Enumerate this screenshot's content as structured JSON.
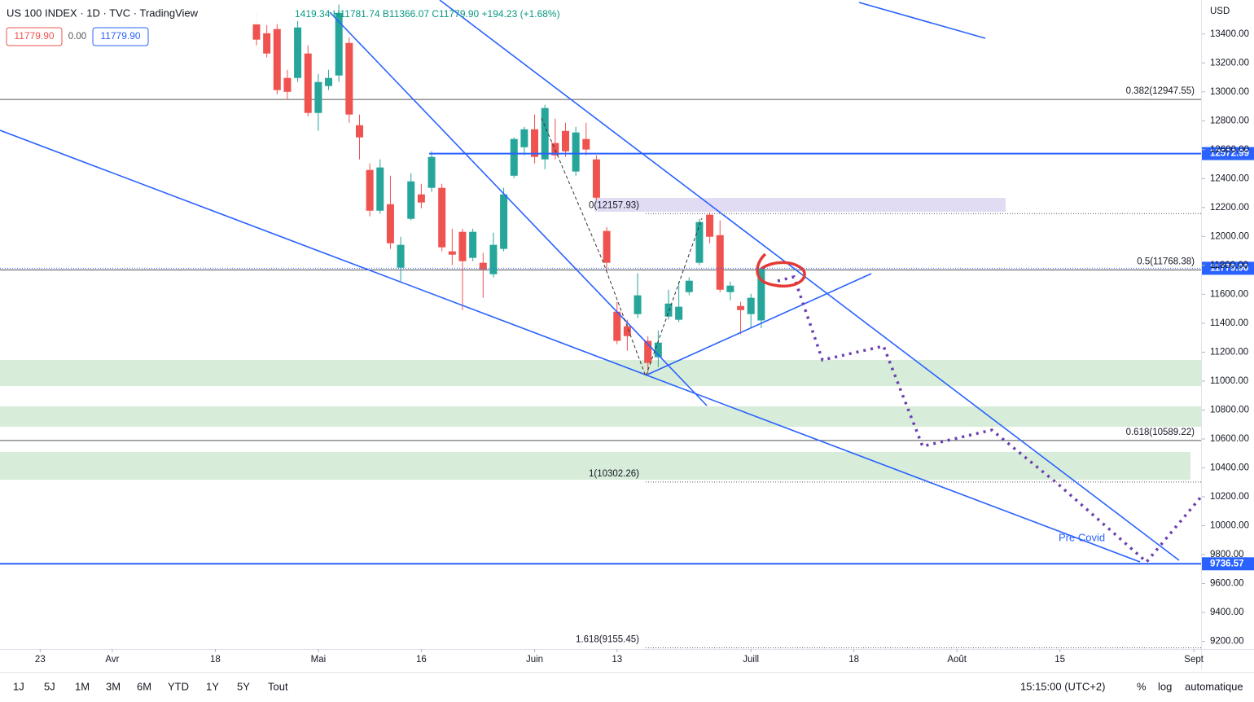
{
  "header": {
    "symbol": "US 100 INDEX · 1D · TVC · TradingView",
    "ohlc": "1419.34 H11781.74 B11366.07 C11779.90 +194.23 (+1.68%)",
    "bid": "11779.90",
    "spread": "0.00",
    "ask": "11779.90",
    "currency": "USD"
  },
  "toolbar": {
    "ranges": [
      "1J",
      "5J",
      "1M",
      "3M",
      "6M",
      "YTD",
      "1Y",
      "5Y",
      "Tout"
    ],
    "time": "15:15:00 (UTC+2)",
    "percent": "%",
    "log": "log",
    "auto": "automatique"
  },
  "chart_data": {
    "type": "candlestick",
    "x": [
      21,
      22,
      23,
      24,
      25,
      26,
      27,
      28,
      29,
      30,
      31,
      32,
      33,
      34,
      35,
      36,
      37,
      38,
      39,
      40,
      41,
      42,
      43,
      44,
      45,
      46,
      47,
      48,
      49,
      50,
      51,
      52,
      53,
      54,
      55,
      56,
      57,
      58,
      59,
      60,
      61,
      62,
      63,
      64,
      65,
      66,
      67,
      68,
      69,
      70
    ],
    "open": [
      13473,
      13405,
      13434,
      13096,
      13096,
      13265,
      12854,
      13040,
      13113,
      13338,
      12769,
      12460,
      12178,
      12223,
      11784,
      12122,
      12291,
      12336,
      12336,
      11897,
      12032,
      11852,
      11818,
      11739,
      11914,
      12420,
      12617,
      12741,
      12533,
      12646,
      12730,
      12449,
      12674,
      12533,
      12038,
      11480,
      11379,
      11463,
      11278,
      11165,
      11446,
      11424,
      11615,
      11818,
      12150,
      12009,
      11615,
      11519,
      11463,
      11419.34
    ],
    "high": [
      13546,
      13462,
      13490,
      13152,
      13490,
      13321,
      13124,
      13152,
      13603,
      13377,
      12843,
      12505,
      12533,
      12420,
      11998,
      12437,
      12364,
      12589,
      12364,
      12054,
      12054,
      12054,
      11886,
      12026,
      12336,
      12685,
      12758,
      12843,
      12910,
      12815,
      12786,
      12758,
      12786,
      12561,
      12066,
      11548,
      11424,
      11745,
      11311,
      11351,
      11632,
      11688,
      11717,
      12122,
      12167,
      12111,
      11688,
      11548,
      11604,
      11781.74
    ],
    "low": [
      13321,
      13237,
      12983,
      12944,
      13068,
      12831,
      12730,
      13012,
      13068,
      12786,
      12533,
      12139,
      12156,
      11914,
      11688,
      12111,
      12195,
      12308,
      11897,
      11801,
      11491,
      11829,
      11576,
      11717,
      11897,
      12403,
      12561,
      12505,
      12465,
      12533,
      12550,
      12420,
      12561,
      12251,
      11773,
      11255,
      11210,
      11435,
      11052,
      11097,
      11424,
      11407,
      11593,
      11801,
      11953,
      11615,
      11559,
      11323,
      11368,
      11366.07
    ],
    "close": [
      13361,
      13265,
      13012,
      13000,
      13445,
      12854,
      13068,
      13096,
      13546,
      12843,
      12685,
      12178,
      12477,
      11953,
      11942,
      12381,
      12235,
      12550,
      11925,
      11874,
      11829,
      12032,
      11773,
      11942,
      12291,
      12674,
      12741,
      12550,
      12888,
      12561,
      12589,
      12719,
      12601,
      12268,
      11818,
      11278,
      11311,
      11593,
      11125,
      11266,
      11536,
      11514,
      11694,
      12100,
      11998,
      11632,
      11660,
      11491,
      11576,
      11779.9
    ],
    "up_color": "#26a69a",
    "down_color": "#ef5350",
    "xlim": [
      -3.9,
      112.7
    ],
    "xticks": [
      {
        "value": 0,
        "label": "23"
      },
      {
        "value": 7,
        "label": "Avr"
      },
      {
        "value": 17,
        "label": "18"
      },
      {
        "value": 27,
        "label": "Mai"
      },
      {
        "value": 37,
        "label": "16"
      },
      {
        "value": 48,
        "label": "Juin"
      },
      {
        "value": 56,
        "label": "13"
      },
      {
        "value": 69,
        "label": "Juill"
      },
      {
        "value": 79,
        "label": "18"
      },
      {
        "value": 89,
        "label": "Août"
      },
      {
        "value": 99,
        "label": "15"
      },
      {
        "value": 112,
        "label": "Sept"
      }
    ],
    "ylim": [
      9147,
      13635
    ],
    "yticks": [
      {
        "value": 9200,
        "label": "9200.00"
      },
      {
        "value": 9400,
        "label": "9400.00"
      },
      {
        "value": 9600,
        "label": "9600.00"
      },
      {
        "value": 9800,
        "label": "9800.00"
      },
      {
        "value": 10000,
        "label": "10000.00"
      },
      {
        "value": 10200,
        "label": "10200.00"
      },
      {
        "value": 10400,
        "label": "10400.00"
      },
      {
        "value": 10600,
        "label": "10600.00"
      },
      {
        "value": 10800,
        "label": "10800.00"
      },
      {
        "value": 11000,
        "label": "11000.00"
      },
      {
        "value": 11200,
        "label": "11200.00"
      },
      {
        "value": 11400,
        "label": "11400.00"
      },
      {
        "value": 11600,
        "label": "11600.00"
      },
      {
        "value": 11800,
        "label": "11800.00"
      },
      {
        "value": 12000,
        "label": "12000.00"
      },
      {
        "value": 12200,
        "label": "12200.00"
      },
      {
        "value": 12400,
        "label": "12400.00"
      },
      {
        "value": 12600,
        "label": "12600.00"
      },
      {
        "value": 12800,
        "label": "12800.00"
      },
      {
        "value": 13000,
        "label": "13000.00"
      },
      {
        "value": 13200,
        "label": "13200.00"
      },
      {
        "value": 13400,
        "label": "13400.00"
      }
    ],
    "fib_levels": [
      {
        "value": 12947.55,
        "label": "0.382(12947.55)"
      },
      {
        "value": 11768.38,
        "label": "0.5(11768.38)"
      },
      {
        "value": 10589.22,
        "label": "0.618(10589.22)"
      }
    ],
    "fib_extensions": [
      {
        "value": 12157.93,
        "label": "0(12157.93)"
      },
      {
        "value": 10302.26,
        "label": "1(10302.26)"
      },
      {
        "value": 9155.45,
        "label": "1.618(9155.45)"
      }
    ],
    "price_lines": [
      {
        "value": 12572.99,
        "label": "12572.99",
        "color": "#2962ff",
        "solid": true
      },
      {
        "value": 11779.9,
        "label": "11779.90",
        "color": "#2962ff",
        "solid": false
      },
      {
        "value": 9736.57,
        "label": "9736.57",
        "color": "#2962ff",
        "solid": true
      }
    ],
    "annotation": "Pre Covid"
  }
}
